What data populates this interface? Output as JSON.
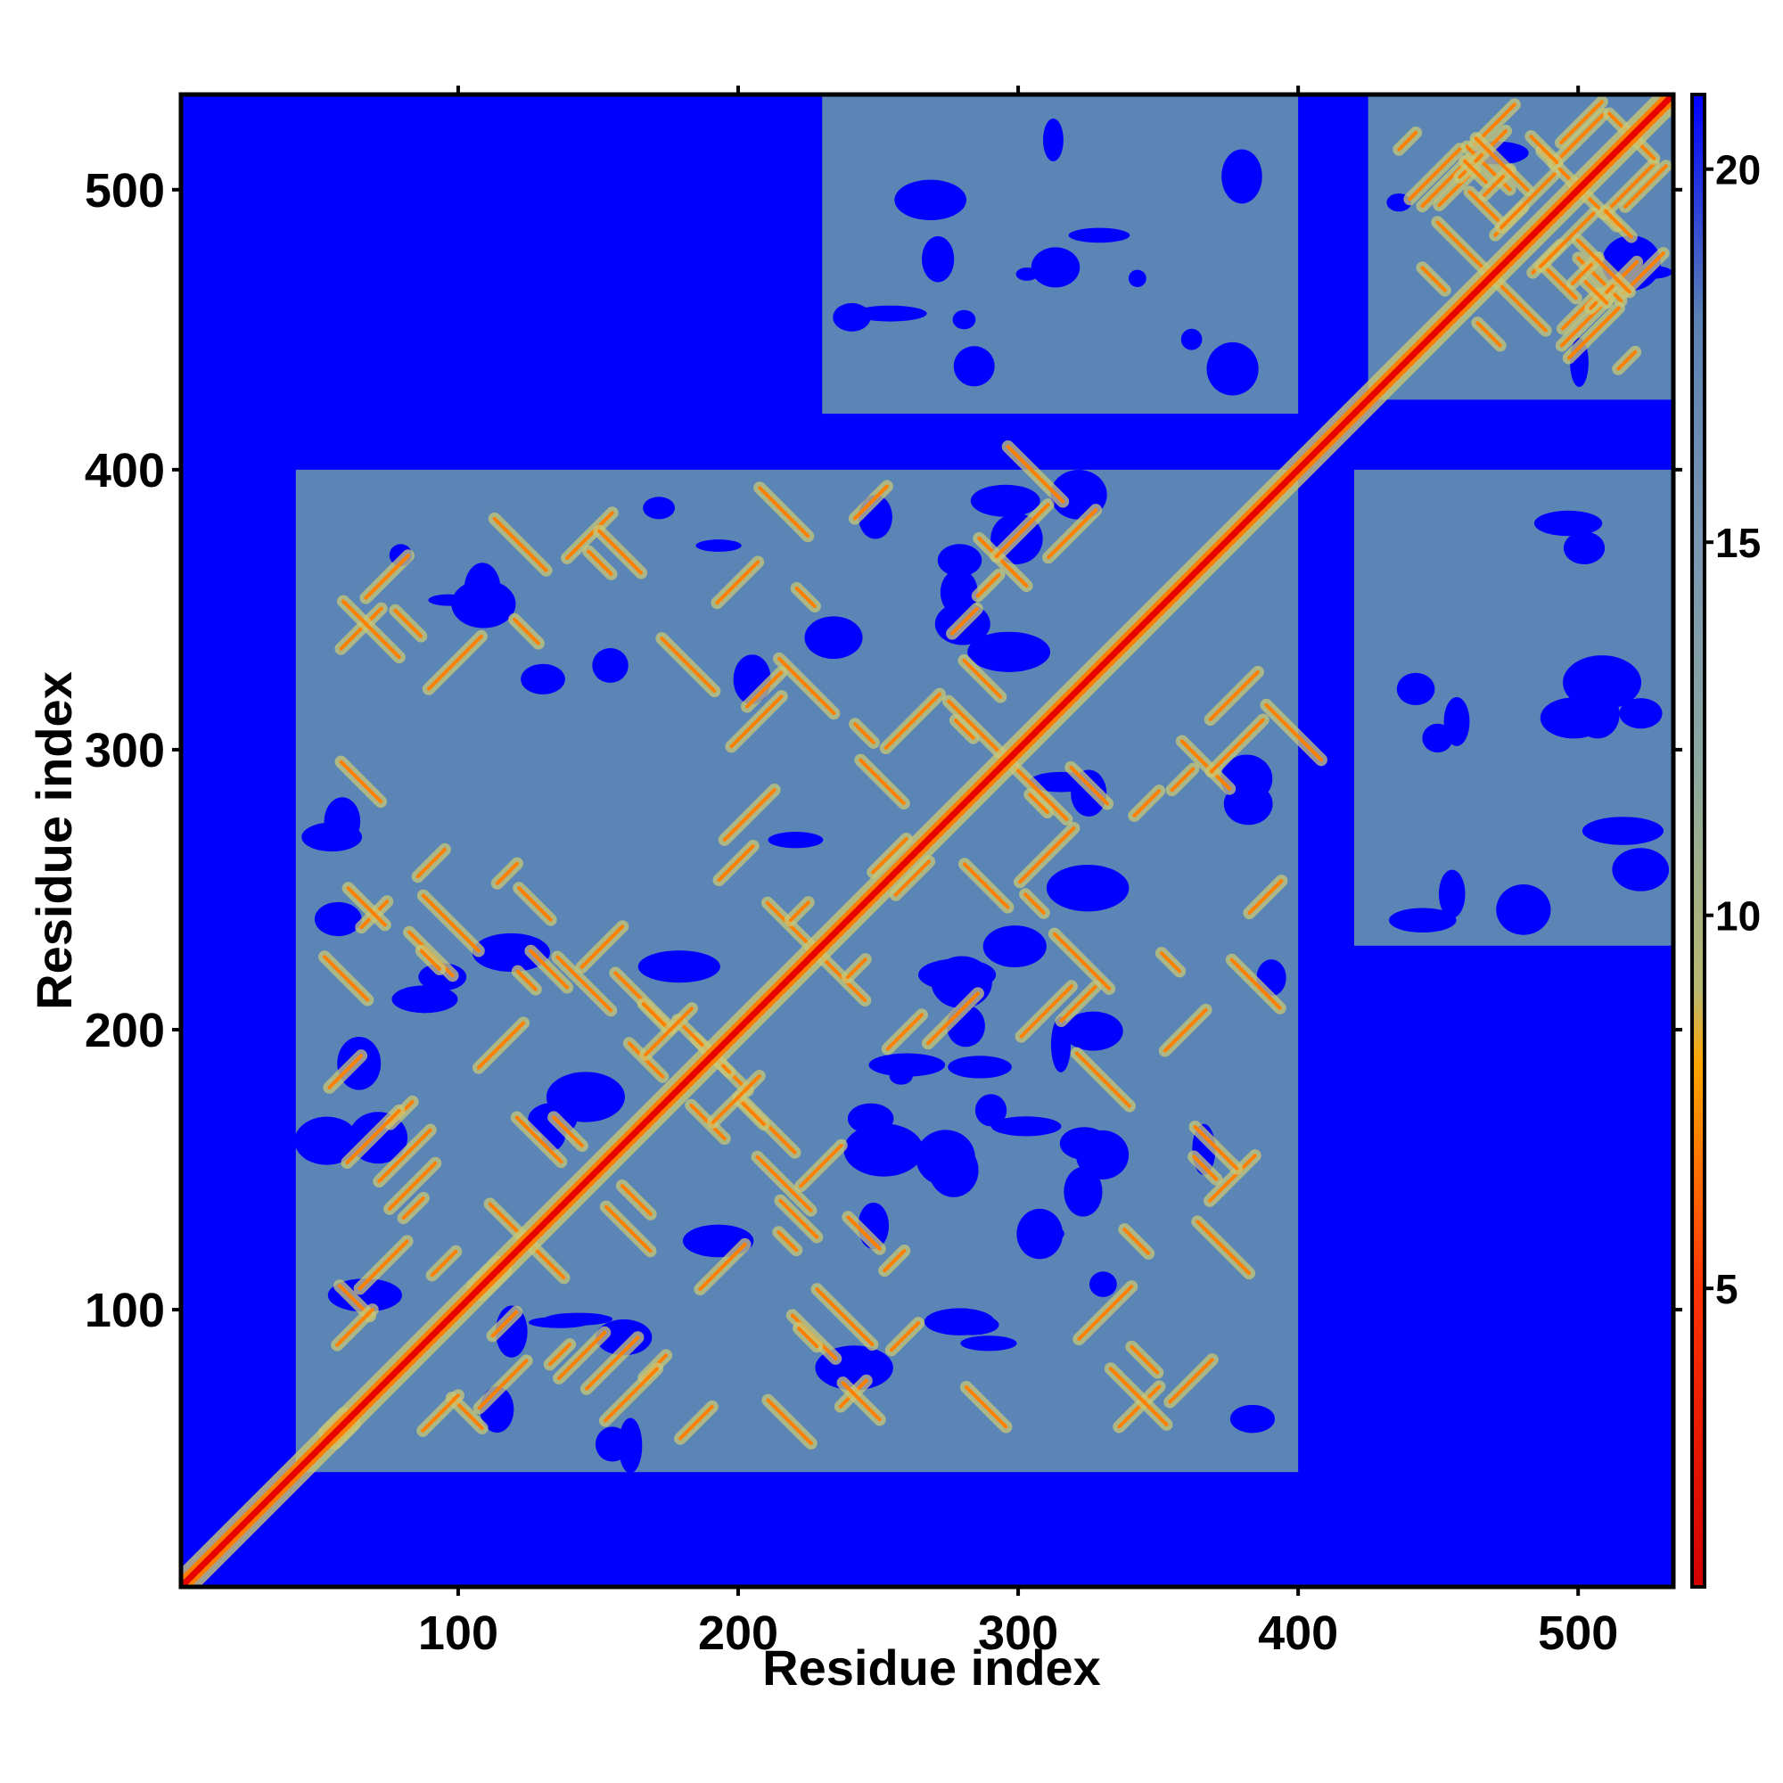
{
  "chart_data": {
    "type": "heatmap",
    "title": "",
    "xlabel": "Residue index",
    "ylabel": "Residue index",
    "xlim": [
      1,
      534
    ],
    "ylim": [
      1,
      534
    ],
    "x_ticks": [
      100,
      200,
      300,
      400,
      500
    ],
    "y_ticks": [
      100,
      200,
      300,
      400,
      500
    ],
    "colorbar": {
      "range": [
        1,
        21
      ],
      "ticks": [
        5,
        10,
        15,
        20
      ],
      "stops": [
        {
          "value": 1,
          "color": "#d40000"
        },
        {
          "value": 5,
          "color": "#ff3300"
        },
        {
          "value": 7,
          "color": "#ff8000"
        },
        {
          "value": 8,
          "color": "#ffa500"
        },
        {
          "value": 9,
          "color": "#b8b870"
        },
        {
          "value": 12,
          "color": "#8aa8a0"
        },
        {
          "value": 15,
          "color": "#7a96b2"
        },
        {
          "value": 18,
          "color": "#5a82b4"
        },
        {
          "value": 21,
          "color": "#0000ff"
        }
      ]
    },
    "colors": {
      "background_far": "#0000ff",
      "mid_contact": "#5a85b5",
      "near_contact": "#c8c878",
      "close_contact": "#ff8000",
      "diagonal": "#e60000"
    },
    "contact_blocks": [
      {
        "x": [
          42,
          400
        ],
        "y": [
          42,
          400
        ]
      },
      {
        "x": [
          425,
          534
        ],
        "y": [
          425,
          534
        ]
      },
      {
        "x": [
          230,
          400
        ],
        "y": [
          420,
          534
        ]
      },
      {
        "x": [
          420,
          534
        ],
        "y": [
          230,
          400
        ]
      }
    ],
    "diagonal_width": 3,
    "grid": false,
    "legend": "right"
  }
}
